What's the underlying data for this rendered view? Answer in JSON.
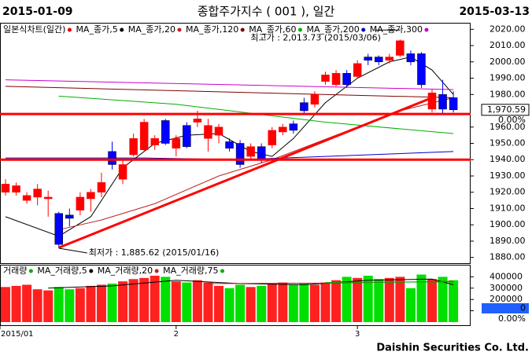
{
  "header": {
    "start_date": "2015-01-09",
    "title": "종합주가지수 ( 001 ), 일간",
    "end_date": "2015-03-13",
    "footer": "Daishin Securities Co. Ltd."
  },
  "chart_data": [
    {
      "type": "candlestick",
      "name": "일본식차트(일간)",
      "name_color": "#e00000",
      "up_color": "#ff0000",
      "down_color": "#0000ff",
      "candles": [
        [
          1920,
          1928,
          1918,
          1925
        ],
        [
          1920,
          1926,
          1918,
          1924
        ],
        [
          1915,
          1920,
          1913,
          1918
        ],
        [
          1917,
          1925,
          1912,
          1922
        ],
        [
          1916,
          1921,
          1905,
          1917
        ],
        [
          1907,
          1908,
          1885.62,
          1888
        ],
        [
          1906,
          1910,
          1899,
          1904
        ],
        [
          1909,
          1920,
          1906,
          1917
        ],
        [
          1916,
          1922,
          1908,
          1920
        ],
        [
          1920,
          1932,
          1917,
          1926
        ],
        [
          1945,
          1951,
          1934,
          1937
        ],
        [
          1928,
          1940,
          1925,
          1937
        ],
        [
          1943,
          1956,
          1942,
          1953
        ],
        [
          1946,
          1965,
          1945,
          1963
        ],
        [
          1949,
          1955,
          1946,
          1953
        ],
        [
          1964,
          1965,
          1949,
          1950
        ],
        [
          1947,
          1955,
          1942,
          1953
        ],
        [
          1961,
          1963,
          1947,
          1948
        ],
        [
          1963,
          1970,
          1960,
          1965
        ],
        [
          1953,
          1965,
          1945,
          1961
        ],
        [
          1955,
          1962,
          1950,
          1960
        ],
        [
          1951,
          1953,
          1945,
          1947
        ],
        [
          1950,
          1952,
          1935,
          1937
        ],
        [
          1942,
          1950,
          1940,
          1948
        ],
        [
          1948,
          1950,
          1938,
          1940
        ],
        [
          1949,
          1960,
          1947,
          1958
        ],
        [
          1957,
          1962,
          1955,
          1960
        ],
        [
          1962,
          1964,
          1956,
          1958
        ],
        [
          1975,
          1978,
          1968,
          1970
        ],
        [
          1974,
          1982,
          1972,
          1980
        ],
        [
          1988,
          1994,
          1986,
          1992
        ],
        [
          1986,
          1995,
          1985,
          1993
        ],
        [
          1993,
          1995,
          1984,
          1986
        ],
        [
          1991,
          2001,
          1990,
          1999
        ],
        [
          2003,
          2005,
          1998,
          2001
        ],
        [
          2003,
          2004,
          1998,
          2000
        ],
        [
          2001,
          2005,
          1999,
          2003
        ],
        [
          2004,
          2013.73,
          2003,
          2013
        ],
        [
          2005,
          2007,
          1998,
          2000
        ],
        [
          2005,
          2006,
          1984,
          1986
        ],
        [
          1971,
          1983,
          1969,
          1981
        ],
        [
          1980,
          1989,
          1968,
          1971
        ],
        [
          1978,
          1982,
          1969,
          1970.59
        ]
      ],
      "ma_series": [
        {
          "name": "MA_종가,5",
          "color": "#000000",
          "x": [
            0,
            5,
            8,
            11,
            14,
            17,
            20,
            23,
            25,
            27,
            30,
            33,
            36,
            38,
            40,
            42
          ],
          "values": [
            1905,
            1893,
            1905,
            1935,
            1950,
            1955,
            1956,
            1945,
            1942,
            1953,
            1975,
            1990,
            2000,
            2003,
            1995,
            1980
          ]
        },
        {
          "name": "MA_종가,20",
          "color": "#c02020",
          "x": [
            5,
            9,
            14,
            20,
            25,
            31,
            37,
            42
          ],
          "values": [
            1897,
            1903,
            1913,
            1930,
            1940,
            1955,
            1970,
            1978
          ]
        },
        {
          "name": "MA_종가,120",
          "color": "#800000",
          "x": [
            0,
            42
          ],
          "values": [
            1985,
            1978
          ]
        },
        {
          "name": "MA_종가,60",
          "color": "#00b000",
          "x": [
            5,
            16,
            30,
            42
          ],
          "values": [
            1979,
            1974,
            1963,
            1956
          ]
        },
        {
          "name": "MA_종가,200",
          "color": "#0000c0",
          "x": [
            0,
            13,
            22,
            42
          ],
          "values": [
            1941,
            1941,
            1940,
            1945
          ]
        },
        {
          "name": "MA_종가,300",
          "color": "#cc00cc",
          "x": [
            0,
            42
          ],
          "values": [
            1989,
            1983
          ]
        }
      ],
      "hlines": [
        1968,
        1940
      ],
      "hline_color": "#ff0000",
      "trendline": {
        "x": [
          5,
          40
        ],
        "values": [
          1886,
          1978
        ],
        "color": "#ff0000"
      },
      "annotations": [
        {
          "text": "최고가 : 2,013.73 (2015/03/06)",
          "x": 37,
          "value": 2013.73,
          "color": "#e00000"
        },
        {
          "text": "최저가 : 1,885.62 (2015/01/16)",
          "x": 5,
          "value": 1885.62,
          "color": "#2020a0"
        }
      ],
      "last_price_label": "1,970.59",
      "last_change_label": "0.00%",
      "ylim": [
        1876,
        2024
      ],
      "yticks": [
        {
          "value": 1880,
          "label": "1880.00"
        },
        {
          "value": 1890,
          "label": "1890.00"
        },
        {
          "value": 1900,
          "label": "1900.00"
        },
        {
          "value": 1910,
          "label": "1910.00"
        },
        {
          "value": 1920,
          "label": "1920.00"
        },
        {
          "value": 1930,
          "label": "1930.00"
        },
        {
          "value": 1940,
          "label": "1940.00"
        },
        {
          "value": 1950,
          "label": "1950.00"
        },
        {
          "value": 1960,
          "label": "1960.00"
        },
        {
          "value": 1980,
          "label": "1980.00"
        },
        {
          "value": 1990,
          "label": "1990.00"
        },
        {
          "value": 2000,
          "label": "2000.00"
        },
        {
          "value": 2010,
          "label": "2010.00"
        },
        {
          "value": 2020,
          "label": "2020.00"
        }
      ]
    },
    {
      "type": "bar",
      "name": "거래량",
      "name_color": "#00b000",
      "up_color": "#ff2020",
      "down_color": "#00e000",
      "values": [
        310000,
        320000,
        330000,
        290000,
        280000,
        310000,
        290000,
        300000,
        320000,
        330000,
        340000,
        360000,
        380000,
        390000,
        410000,
        400000,
        360000,
        350000,
        370000,
        350000,
        320000,
        300000,
        330000,
        310000,
        320000,
        340000,
        350000,
        330000,
        340000,
        330000,
        350000,
        370000,
        400000,
        390000,
        410000,
        380000,
        390000,
        400000,
        300000,
        420000,
        380000,
        400000,
        370000
      ],
      "ma_series": [
        {
          "name": "MA_거래량,5",
          "color": "#000000",
          "x": [
            4,
            10,
            16,
            22,
            28,
            34,
            40,
            42
          ],
          "values": [
            300000,
            320000,
            370000,
            340000,
            330000,
            370000,
            380000,
            330000
          ]
        },
        {
          "name": "MA_거래량,20",
          "color": "#c02020",
          "x": [
            19,
            30,
            42
          ],
          "values": [
            340000,
            345000,
            360000
          ]
        },
        {
          "name": "MA_거래량,75",
          "color": "#00b000",
          "x": [
            30,
            42
          ],
          "values": [
            350000,
            355000
          ]
        }
      ],
      "ylim": [
        0,
        500000
      ],
      "yticks": [
        100000,
        200000,
        300000,
        400000
      ],
      "last_value_label": "0",
      "last_change_label": "0.00%",
      "xticks": [
        {
          "value": 0,
          "label": "2015/01"
        },
        {
          "value": 16,
          "label": "2"
        },
        {
          "value": 33,
          "label": "3"
        }
      ]
    }
  ]
}
